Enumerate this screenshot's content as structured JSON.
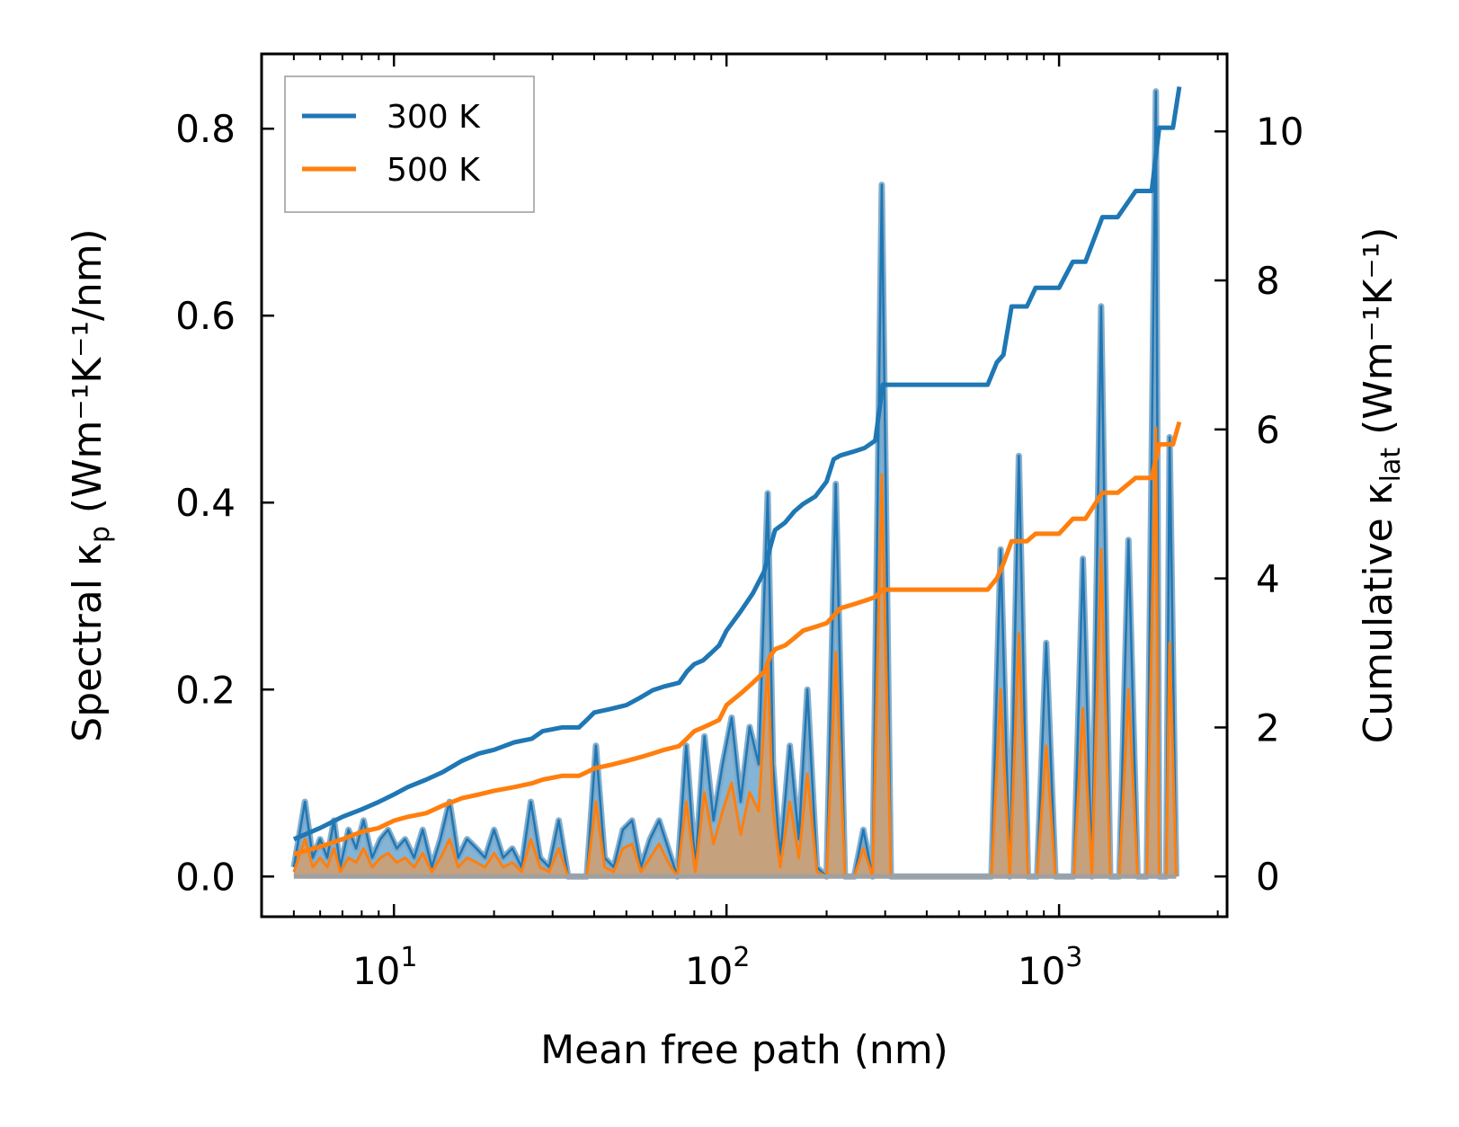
{
  "chart_data": {
    "type": "line",
    "xlabel": "Mean free path (nm)",
    "ylabel_left": {
      "main": "Spectral κ",
      "sub": "p",
      "units": " (Wm⁻¹K⁻¹/nm)"
    },
    "ylabel_right": {
      "main": "Cumulative κ",
      "sub": "lat",
      "units": " (Wm⁻¹K⁻¹)"
    },
    "xscale": "log",
    "xlim": [
      4,
      3200
    ],
    "ylim_left": [
      -0.043,
      0.88
    ],
    "ylim_right": [
      -0.54,
      11.04
    ],
    "x_ticks": [
      {
        "value": 10,
        "base": "10",
        "exp": "1"
      },
      {
        "value": 100,
        "base": "10",
        "exp": "2"
      },
      {
        "value": 1000,
        "base": "10",
        "exp": "3"
      }
    ],
    "y_ticks_left": [
      {
        "value": 0.0,
        "label": "0.0"
      },
      {
        "value": 0.2,
        "label": "0.2"
      },
      {
        "value": 0.4,
        "label": "0.4"
      },
      {
        "value": 0.6,
        "label": "0.6"
      },
      {
        "value": 0.8,
        "label": "0.8"
      }
    ],
    "y_ticks_right": [
      {
        "value": 0,
        "label": "0"
      },
      {
        "value": 2,
        "label": "2"
      },
      {
        "value": 4,
        "label": "4"
      },
      {
        "value": 6,
        "label": "6"
      },
      {
        "value": 8,
        "label": "8"
      },
      {
        "value": 10,
        "label": "10"
      }
    ],
    "legend": {
      "position": "top-left",
      "entries": [
        "300 K",
        "500 K"
      ]
    },
    "colors": {
      "s300": "#1f77b4",
      "s500": "#ff7f0e",
      "fill300": "#1f77b4",
      "fill500": "#c8a078"
    },
    "spectral_300K": {
      "x": [
        5,
        5.4,
        5.7,
        6.0,
        6.3,
        6.6,
        6.9,
        7.3,
        7.7,
        8.1,
        8.6,
        9.1,
        9.6,
        10.2,
        10.8,
        11.5,
        12.2,
        13,
        13.8,
        14.7,
        15.6,
        16.6,
        17.7,
        18.8,
        20,
        21.3,
        22.7,
        24.2,
        25.8,
        27.5,
        29.3,
        31.3,
        33.4,
        35.7,
        38,
        40.5,
        43,
        45.8,
        48.8,
        52,
        55.3,
        58.9,
        62.7,
        66.8,
        71.1,
        75.7,
        80.6,
        85.8,
        91.4,
        97.3,
        103.6,
        110.3,
        117.4,
        125,
        133,
        138,
        145,
        155,
        165,
        175,
        187,
        200,
        213,
        227,
        242,
        258,
        275,
        293,
        312,
        332,
        354,
        377,
        402,
        428,
        456,
        486,
        518,
        552,
        588,
        626,
        667,
        711,
        757,
        806,
        859,
        915,
        975,
        1039,
        1107,
        1179,
        1256,
        1338,
        1425,
        1518,
        1617,
        1723,
        1835,
        1955,
        2000,
        2100,
        2150,
        2250
      ],
      "y": [
        0.01,
        0.08,
        0.02,
        0.04,
        0.02,
        0.06,
        0.01,
        0.05,
        0.03,
        0.06,
        0.02,
        0.04,
        0.05,
        0.03,
        0.04,
        0.02,
        0.05,
        0.01,
        0.04,
        0.08,
        0.02,
        0.04,
        0.03,
        0.02,
        0.05,
        0.02,
        0.03,
        0.01,
        0.08,
        0.02,
        0.01,
        0.06,
        0.0,
        0.0,
        0.0,
        0.14,
        0.02,
        0.01,
        0.05,
        0.06,
        0.01,
        0.04,
        0.06,
        0.03,
        0.0,
        0.14,
        0.01,
        0.15,
        0.06,
        0.12,
        0.17,
        0.08,
        0.16,
        0.12,
        0.41,
        0.12,
        0.02,
        0.14,
        0.04,
        0.2,
        0.01,
        0.0,
        0.42,
        0.0,
        0.0,
        0.05,
        0.0,
        0.74,
        0.0,
        0.0,
        0.0,
        0.0,
        0.0,
        0.0,
        0.0,
        0.0,
        0.0,
        0.0,
        0.0,
        0.0,
        0.35,
        0.0,
        0.45,
        0.0,
        0.0,
        0.25,
        0.0,
        0.0,
        0.0,
        0.34,
        0.0,
        0.61,
        0.0,
        0.0,
        0.36,
        0.0,
        0.0,
        0.84,
        0.0,
        0.0,
        0.47,
        0.0
      ]
    },
    "spectral_500K": {
      "x": [
        5,
        5.4,
        5.7,
        6.0,
        6.3,
        6.6,
        6.9,
        7.3,
        7.7,
        8.1,
        8.6,
        9.1,
        9.6,
        10.2,
        10.8,
        11.5,
        12.2,
        13,
        13.8,
        14.7,
        15.6,
        16.6,
        17.7,
        18.8,
        20,
        21.3,
        22.7,
        24.2,
        25.8,
        27.5,
        29.3,
        31.3,
        33.4,
        35.7,
        38,
        40.5,
        43,
        45.8,
        48.8,
        52,
        55.3,
        58.9,
        62.7,
        66.8,
        71.1,
        75.7,
        80.6,
        85.8,
        91.4,
        97.3,
        103.6,
        110.3,
        117.4,
        125,
        133,
        138,
        145,
        155,
        165,
        175,
        187,
        200,
        213,
        227,
        242,
        258,
        275,
        293,
        312,
        332,
        354,
        377,
        402,
        428,
        456,
        486,
        518,
        552,
        588,
        626,
        667,
        711,
        757,
        806,
        859,
        915,
        975,
        1039,
        1107,
        1179,
        1256,
        1338,
        1425,
        1518,
        1617,
        1723,
        1835,
        1955,
        2000,
        2100,
        2150,
        2250
      ],
      "y": [
        0.005,
        0.04,
        0.01,
        0.02,
        0.01,
        0.03,
        0.005,
        0.02,
        0.015,
        0.03,
        0.01,
        0.02,
        0.025,
        0.015,
        0.02,
        0.01,
        0.025,
        0.005,
        0.02,
        0.04,
        0.01,
        0.02,
        0.015,
        0.01,
        0.025,
        0.01,
        0.015,
        0.005,
        0.04,
        0.01,
        0.005,
        0.03,
        0.0,
        0.0,
        0.0,
        0.08,
        0.01,
        0.005,
        0.03,
        0.035,
        0.005,
        0.02,
        0.035,
        0.015,
        0.0,
        0.08,
        0.005,
        0.09,
        0.035,
        0.07,
        0.1,
        0.045,
        0.09,
        0.07,
        0.23,
        0.07,
        0.01,
        0.08,
        0.02,
        0.11,
        0.005,
        0.0,
        0.24,
        0.0,
        0.0,
        0.03,
        0.0,
        0.43,
        0.0,
        0.0,
        0.0,
        0.0,
        0.0,
        0.0,
        0.0,
        0.0,
        0.0,
        0.0,
        0.0,
        0.0,
        0.2,
        0.0,
        0.26,
        0.0,
        0.0,
        0.14,
        0.0,
        0.0,
        0.0,
        0.18,
        0.0,
        0.35,
        0.0,
        0.0,
        0.2,
        0.0,
        0.0,
        0.48,
        0.0,
        0.0,
        0.25,
        0.0
      ]
    },
    "cumulative_300K": {
      "x": [
        5,
        6,
        7,
        8,
        9,
        10,
        11,
        12.5,
        14,
        16,
        18,
        20,
        23,
        26,
        28,
        32,
        36,
        38,
        40,
        45,
        50,
        55,
        60,
        65,
        72,
        76,
        80,
        85,
        90,
        95,
        100,
        110,
        120,
        130,
        135,
        140,
        150,
        160,
        170,
        185,
        200,
        210,
        220,
        240,
        260,
        280,
        295,
        310,
        400,
        500,
        610,
        650,
        680,
        720,
        800,
        850,
        1000,
        1100,
        1200,
        1350,
        1500,
        1700,
        1900,
        2000,
        2100,
        2200,
        2300
      ],
      "y": [
        0.5,
        0.65,
        0.8,
        0.9,
        1.0,
        1.1,
        1.2,
        1.3,
        1.4,
        1.55,
        1.65,
        1.7,
        1.8,
        1.85,
        1.95,
        2.0,
        2.0,
        2.1,
        2.2,
        2.25,
        2.3,
        2.4,
        2.5,
        2.55,
        2.6,
        2.75,
        2.85,
        2.9,
        3.0,
        3.1,
        3.3,
        3.55,
        3.8,
        4.1,
        4.4,
        4.65,
        4.75,
        4.9,
        5.0,
        5.1,
        5.3,
        5.6,
        5.65,
        5.7,
        5.75,
        5.85,
        6.6,
        6.6,
        6.6,
        6.6,
        6.6,
        6.9,
        7.0,
        7.65,
        7.65,
        7.9,
        7.9,
        8.25,
        8.25,
        8.85,
        8.85,
        9.2,
        9.2,
        10.05,
        10.05,
        10.05,
        10.6
      ]
    },
    "cumulative_500K": {
      "x": [
        5,
        6,
        7,
        8,
        9,
        10,
        11,
        12.5,
        14,
        16,
        18,
        20,
        23,
        26,
        28,
        32,
        36,
        38,
        40,
        45,
        50,
        55,
        60,
        65,
        72,
        76,
        80,
        85,
        90,
        95,
        100,
        110,
        120,
        130,
        135,
        140,
        150,
        160,
        170,
        185,
        200,
        210,
        220,
        240,
        260,
        280,
        295,
        310,
        400,
        500,
        610,
        650,
        680,
        720,
        800,
        850,
        1000,
        1100,
        1200,
        1350,
        1500,
        1700,
        1900,
        2000,
        2100,
        2200,
        2300
      ],
      "y": [
        0.3,
        0.4,
        0.5,
        0.6,
        0.65,
        0.75,
        0.8,
        0.85,
        0.95,
        1.05,
        1.1,
        1.15,
        1.2,
        1.25,
        1.3,
        1.35,
        1.35,
        1.4,
        1.45,
        1.5,
        1.55,
        1.6,
        1.65,
        1.7,
        1.75,
        1.85,
        1.95,
        2.0,
        2.05,
        2.1,
        2.3,
        2.45,
        2.6,
        2.75,
        2.95,
        3.05,
        3.1,
        3.2,
        3.3,
        3.35,
        3.4,
        3.5,
        3.6,
        3.65,
        3.7,
        3.75,
        3.85,
        3.85,
        3.85,
        3.85,
        3.85,
        4.0,
        4.2,
        4.5,
        4.5,
        4.6,
        4.6,
        4.8,
        4.8,
        5.15,
        5.15,
        5.35,
        5.35,
        5.8,
        5.8,
        5.8,
        6.1
      ]
    }
  }
}
